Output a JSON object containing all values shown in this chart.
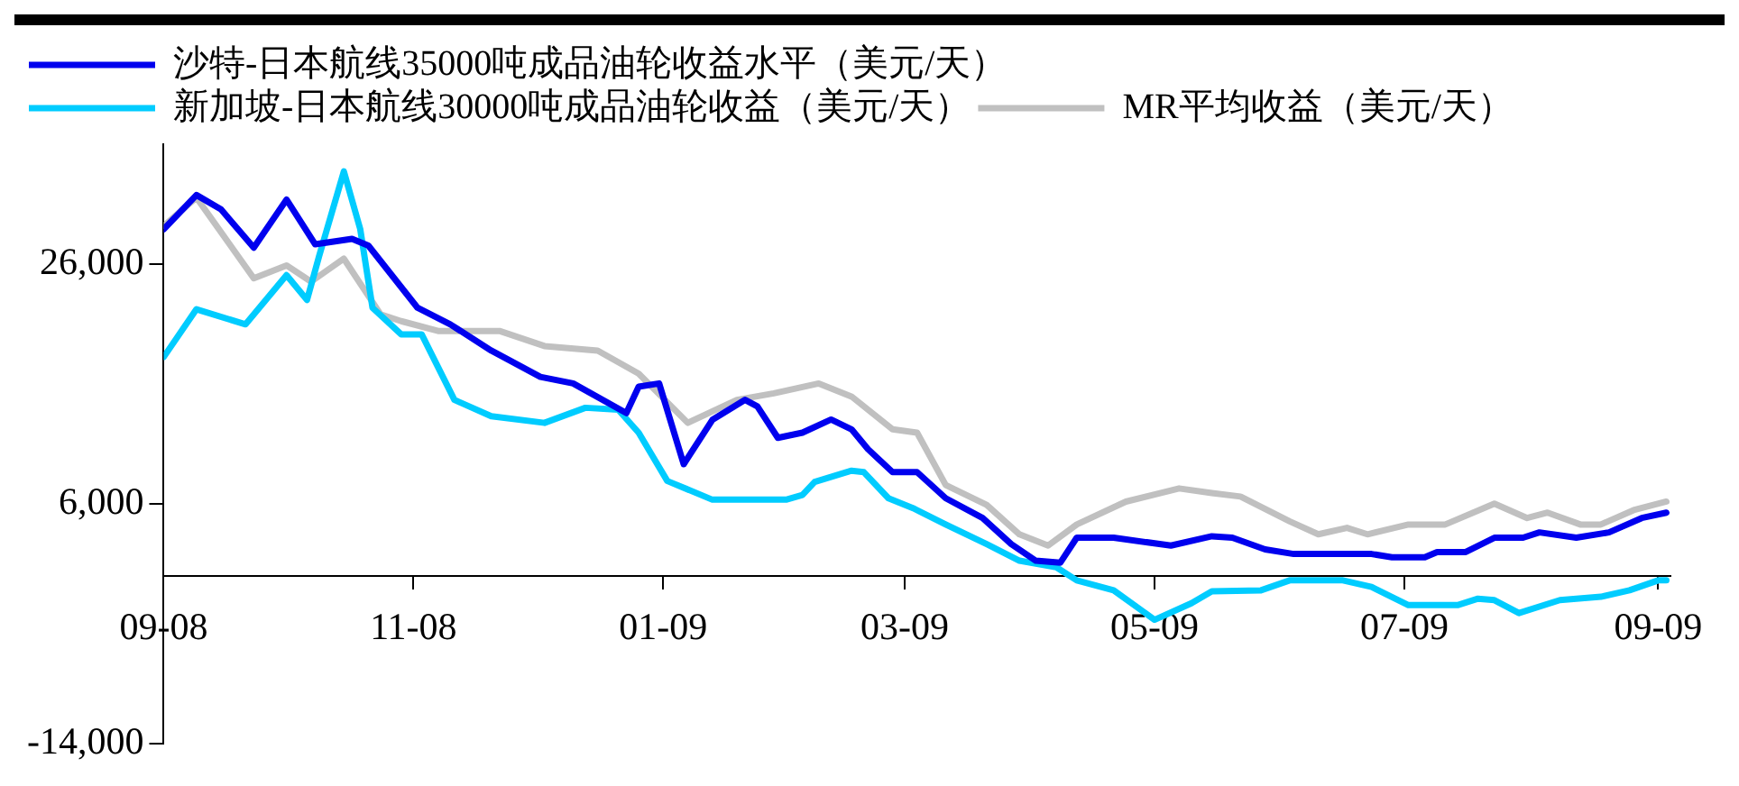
{
  "chart_data": {
    "type": "line",
    "legend": "top left",
    "grid": false,
    "marker": "none",
    "line_style": "solid",
    "ylim": [
      -14000,
      36000
    ],
    "yticks": [
      {
        "value": -14000,
        "label": "-14,000"
      },
      {
        "value": 6000,
        "label": "6,000"
      },
      {
        "value": 26000,
        "label": "26,000"
      }
    ],
    "xlim": [
      "2008-09-01",
      "2009-09-04"
    ],
    "xticks": [
      {
        "value": "2008-09-01",
        "label": "09-08"
      },
      {
        "value": "2008-11-01",
        "label": "11-08"
      },
      {
        "value": "2009-01-01",
        "label": "01-09"
      },
      {
        "value": "2009-03-01",
        "label": "03-09"
      },
      {
        "value": "2009-05-01",
        "label": "05-09"
      },
      {
        "value": "2009-07-01",
        "label": "07-09"
      },
      {
        "value": "2009-09-01",
        "label": "09-09"
      }
    ],
    "series": [
      {
        "name": "沙特-日本航线35000吨成品油轮收益水平（美元/天）",
        "color": "#0000ee",
        "x": [
          "2008-09-01",
          "2008-09-09",
          "2008-09-15",
          "2008-09-23",
          "2008-10-01",
          "2008-10-08",
          "2008-10-17",
          "2008-10-21",
          "2008-11-02",
          "2008-11-10",
          "2008-11-20",
          "2008-12-02",
          "2008-12-10",
          "2008-12-23",
          "2008-12-26",
          "2008-12-31",
          "2009-01-06",
          "2009-01-13",
          "2009-01-21",
          "2009-01-24",
          "2009-01-29",
          "2009-02-04",
          "2009-02-11",
          "2009-02-16",
          "2009-02-20",
          "2009-02-26",
          "2009-03-04",
          "2009-03-11",
          "2009-03-20",
          "2009-03-27",
          "2009-04-02",
          "2009-04-08",
          "2009-04-12",
          "2009-04-21",
          "2009-05-05",
          "2009-05-15",
          "2009-05-20",
          "2009-05-28",
          "2009-06-04",
          "2009-06-23",
          "2009-06-28",
          "2009-07-06",
          "2009-07-09",
          "2009-07-16",
          "2009-07-23",
          "2009-07-30",
          "2009-08-03",
          "2009-08-12",
          "2009-08-20",
          "2009-08-28",
          "2009-09-03"
        ],
        "values": [
          28900,
          31760,
          30560,
          27370,
          31380,
          27650,
          28100,
          27540,
          22350,
          20970,
          18780,
          16590,
          16040,
          13570,
          15770,
          16040,
          9300,
          13000,
          14670,
          14130,
          11500,
          11930,
          13030,
          12210,
          10560,
          8640,
          8640,
          6460,
          4810,
          2630,
          1250,
          1090,
          3170,
          3170,
          2510,
          3290,
          3170,
          2190,
          1810,
          1810,
          1530,
          1530,
          1970,
          1970,
          3170,
          3170,
          3610,
          3170,
          3610,
          4810,
          5260
        ]
      },
      {
        "name": "新加坡-日本航线30000吨成品油轮收益（美元/天）",
        "color": "#00ccff",
        "x": [
          "2008-09-01",
          "2008-09-09",
          "2008-09-21",
          "2008-10-01",
          "2008-10-06",
          "2008-10-09",
          "2008-10-15",
          "2008-10-19",
          "2008-10-22",
          "2008-10-29",
          "2008-11-03",
          "2008-11-11",
          "2008-11-20",
          "2008-12-03",
          "2008-12-13",
          "2008-12-21",
          "2008-12-26",
          "2009-01-02",
          "2009-01-13",
          "2009-01-31",
          "2009-02-04",
          "2009-02-07",
          "2009-02-16",
          "2009-02-19",
          "2009-02-25",
          "2009-03-03",
          "2009-03-11",
          "2009-03-21",
          "2009-03-29",
          "2009-04-07",
          "2009-04-12",
          "2009-04-21",
          "2009-05-01",
          "2009-05-10",
          "2009-05-15",
          "2009-05-27",
          "2009-06-03",
          "2009-06-16",
          "2009-06-23",
          "2009-07-02",
          "2009-07-14",
          "2009-07-19",
          "2009-07-23",
          "2009-07-29",
          "2009-08-08",
          "2009-08-18",
          "2009-08-25",
          "2009-09-01",
          "2009-09-03"
        ],
        "values": [
          18240,
          22230,
          20970,
          25070,
          23000,
          26710,
          33730,
          28920,
          22350,
          20140,
          20140,
          14670,
          13310,
          12750,
          14010,
          13850,
          11930,
          7900,
          6340,
          6340,
          6740,
          7820,
          8760,
          8640,
          6460,
          5640,
          4270,
          2630,
          1250,
          710,
          -390,
          -1220,
          -3680,
          -2300,
          -1310,
          -1220,
          -390,
          -390,
          -940,
          -2460,
          -2460,
          -1920,
          -2040,
          -3120,
          -2040,
          -1760,
          -1220,
          -390,
          -390
        ]
      },
      {
        "name": "MR平均收益（美元/天）",
        "color": "#c0c0c0",
        "x": [
          "2008-09-01",
          "2008-09-09",
          "2008-09-23",
          "2008-10-01",
          "2008-10-07",
          "2008-10-15",
          "2008-10-24",
          "2008-10-29",
          "2008-11-07",
          "2008-11-22",
          "2008-12-03",
          "2008-12-16",
          "2008-12-26",
          "2009-01-07",
          "2009-01-19",
          "2009-01-28",
          "2009-02-08",
          "2009-02-16",
          "2009-02-26",
          "2009-03-04",
          "2009-03-11",
          "2009-03-21",
          "2009-03-29",
          "2009-04-05",
          "2009-04-12",
          "2009-04-24",
          "2009-05-07",
          "2009-05-15",
          "2009-05-22",
          "2009-06-03",
          "2009-06-10",
          "2009-06-17",
          "2009-06-22",
          "2009-07-02",
          "2009-07-11",
          "2009-07-23",
          "2009-07-31",
          "2009-08-05",
          "2009-08-13",
          "2009-08-18",
          "2009-08-26",
          "2009-09-03"
        ],
        "values": [
          29180,
          31550,
          24810,
          25890,
          24530,
          26450,
          21790,
          21240,
          20420,
          20420,
          19160,
          18780,
          16860,
          12750,
          14670,
          15210,
          16040,
          14950,
          12210,
          11930,
          7560,
          5910,
          3450,
          2510,
          4270,
          6180,
          7280,
          6900,
          6600,
          4530,
          3450,
          3990,
          3450,
          4270,
          4270,
          6010,
          4810,
          5260,
          4270,
          4270,
          5470,
          6180
        ]
      }
    ]
  }
}
